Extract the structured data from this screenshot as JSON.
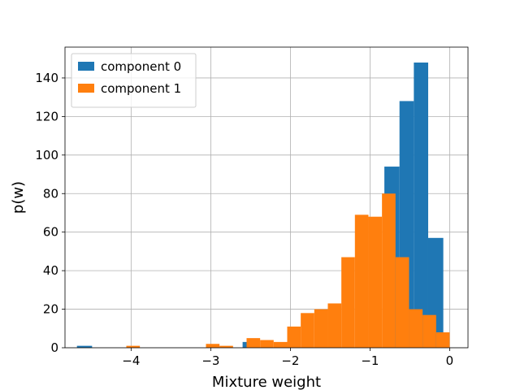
{
  "chart_data": {
    "type": "histogram",
    "xlabel": "Mixture weight",
    "ylabel": "p(w)",
    "xlim": [
      -4.83,
      0.23
    ],
    "ylim": [
      0,
      156
    ],
    "grid": true,
    "legend_position": "top-left",
    "x_ticks": [
      {
        "value": -4,
        "label": "−4"
      },
      {
        "value": -3,
        "label": "−3"
      },
      {
        "value": -2,
        "label": "−2"
      },
      {
        "value": -1,
        "label": "−1"
      },
      {
        "value": 0,
        "label": "0"
      }
    ],
    "y_ticks": [
      {
        "value": 0,
        "label": "0"
      },
      {
        "value": 20,
        "label": "20"
      },
      {
        "value": 40,
        "label": "40"
      },
      {
        "value": 60,
        "label": "60"
      },
      {
        "value": 80,
        "label": "80"
      },
      {
        "value": 100,
        "label": "100"
      },
      {
        "value": 120,
        "label": "120"
      },
      {
        "value": 140,
        "label": "140"
      }
    ],
    "series": [
      {
        "name": "component 0",
        "color": "#1f77b4",
        "bins": [
          {
            "x0": -4.68,
            "x1": -4.49,
            "count": 1
          },
          {
            "x0": -2.6,
            "x1": -2.43,
            "count": 3
          },
          {
            "x0": -0.82,
            "x1": -0.63,
            "count": 94
          },
          {
            "x0": -0.63,
            "x1": -0.45,
            "count": 128
          },
          {
            "x0": -0.45,
            "x1": -0.27,
            "count": 148
          },
          {
            "x0": -0.27,
            "x1": -0.08,
            "count": 57
          }
        ]
      },
      {
        "name": "component 1",
        "color": "#ff7f0e",
        "bins": [
          {
            "x0": -4.06,
            "x1": -3.89,
            "count": 1
          },
          {
            "x0": -3.06,
            "x1": -2.89,
            "count": 2
          },
          {
            "x0": -2.89,
            "x1": -2.72,
            "count": 1
          },
          {
            "x0": -2.55,
            "x1": -2.38,
            "count": 5
          },
          {
            "x0": -2.38,
            "x1": -2.21,
            "count": 4
          },
          {
            "x0": -2.21,
            "x1": -2.04,
            "count": 3
          },
          {
            "x0": -2.04,
            "x1": -1.87,
            "count": 11
          },
          {
            "x0": -1.87,
            "x1": -1.7,
            "count": 18
          },
          {
            "x0": -1.7,
            "x1": -1.53,
            "count": 20
          },
          {
            "x0": -1.53,
            "x1": -1.36,
            "count": 23
          },
          {
            "x0": -1.36,
            "x1": -1.19,
            "count": 47
          },
          {
            "x0": -1.19,
            "x1": -1.02,
            "count": 69
          },
          {
            "x0": -1.02,
            "x1": -0.85,
            "count": 68
          },
          {
            "x0": -0.85,
            "x1": -0.68,
            "count": 80
          },
          {
            "x0": -0.68,
            "x1": -0.51,
            "count": 47
          },
          {
            "x0": -0.51,
            "x1": -0.34,
            "count": 20
          },
          {
            "x0": -0.34,
            "x1": -0.17,
            "count": 17
          },
          {
            "x0": -0.17,
            "x1": 0.0,
            "count": 8
          }
        ]
      }
    ]
  }
}
